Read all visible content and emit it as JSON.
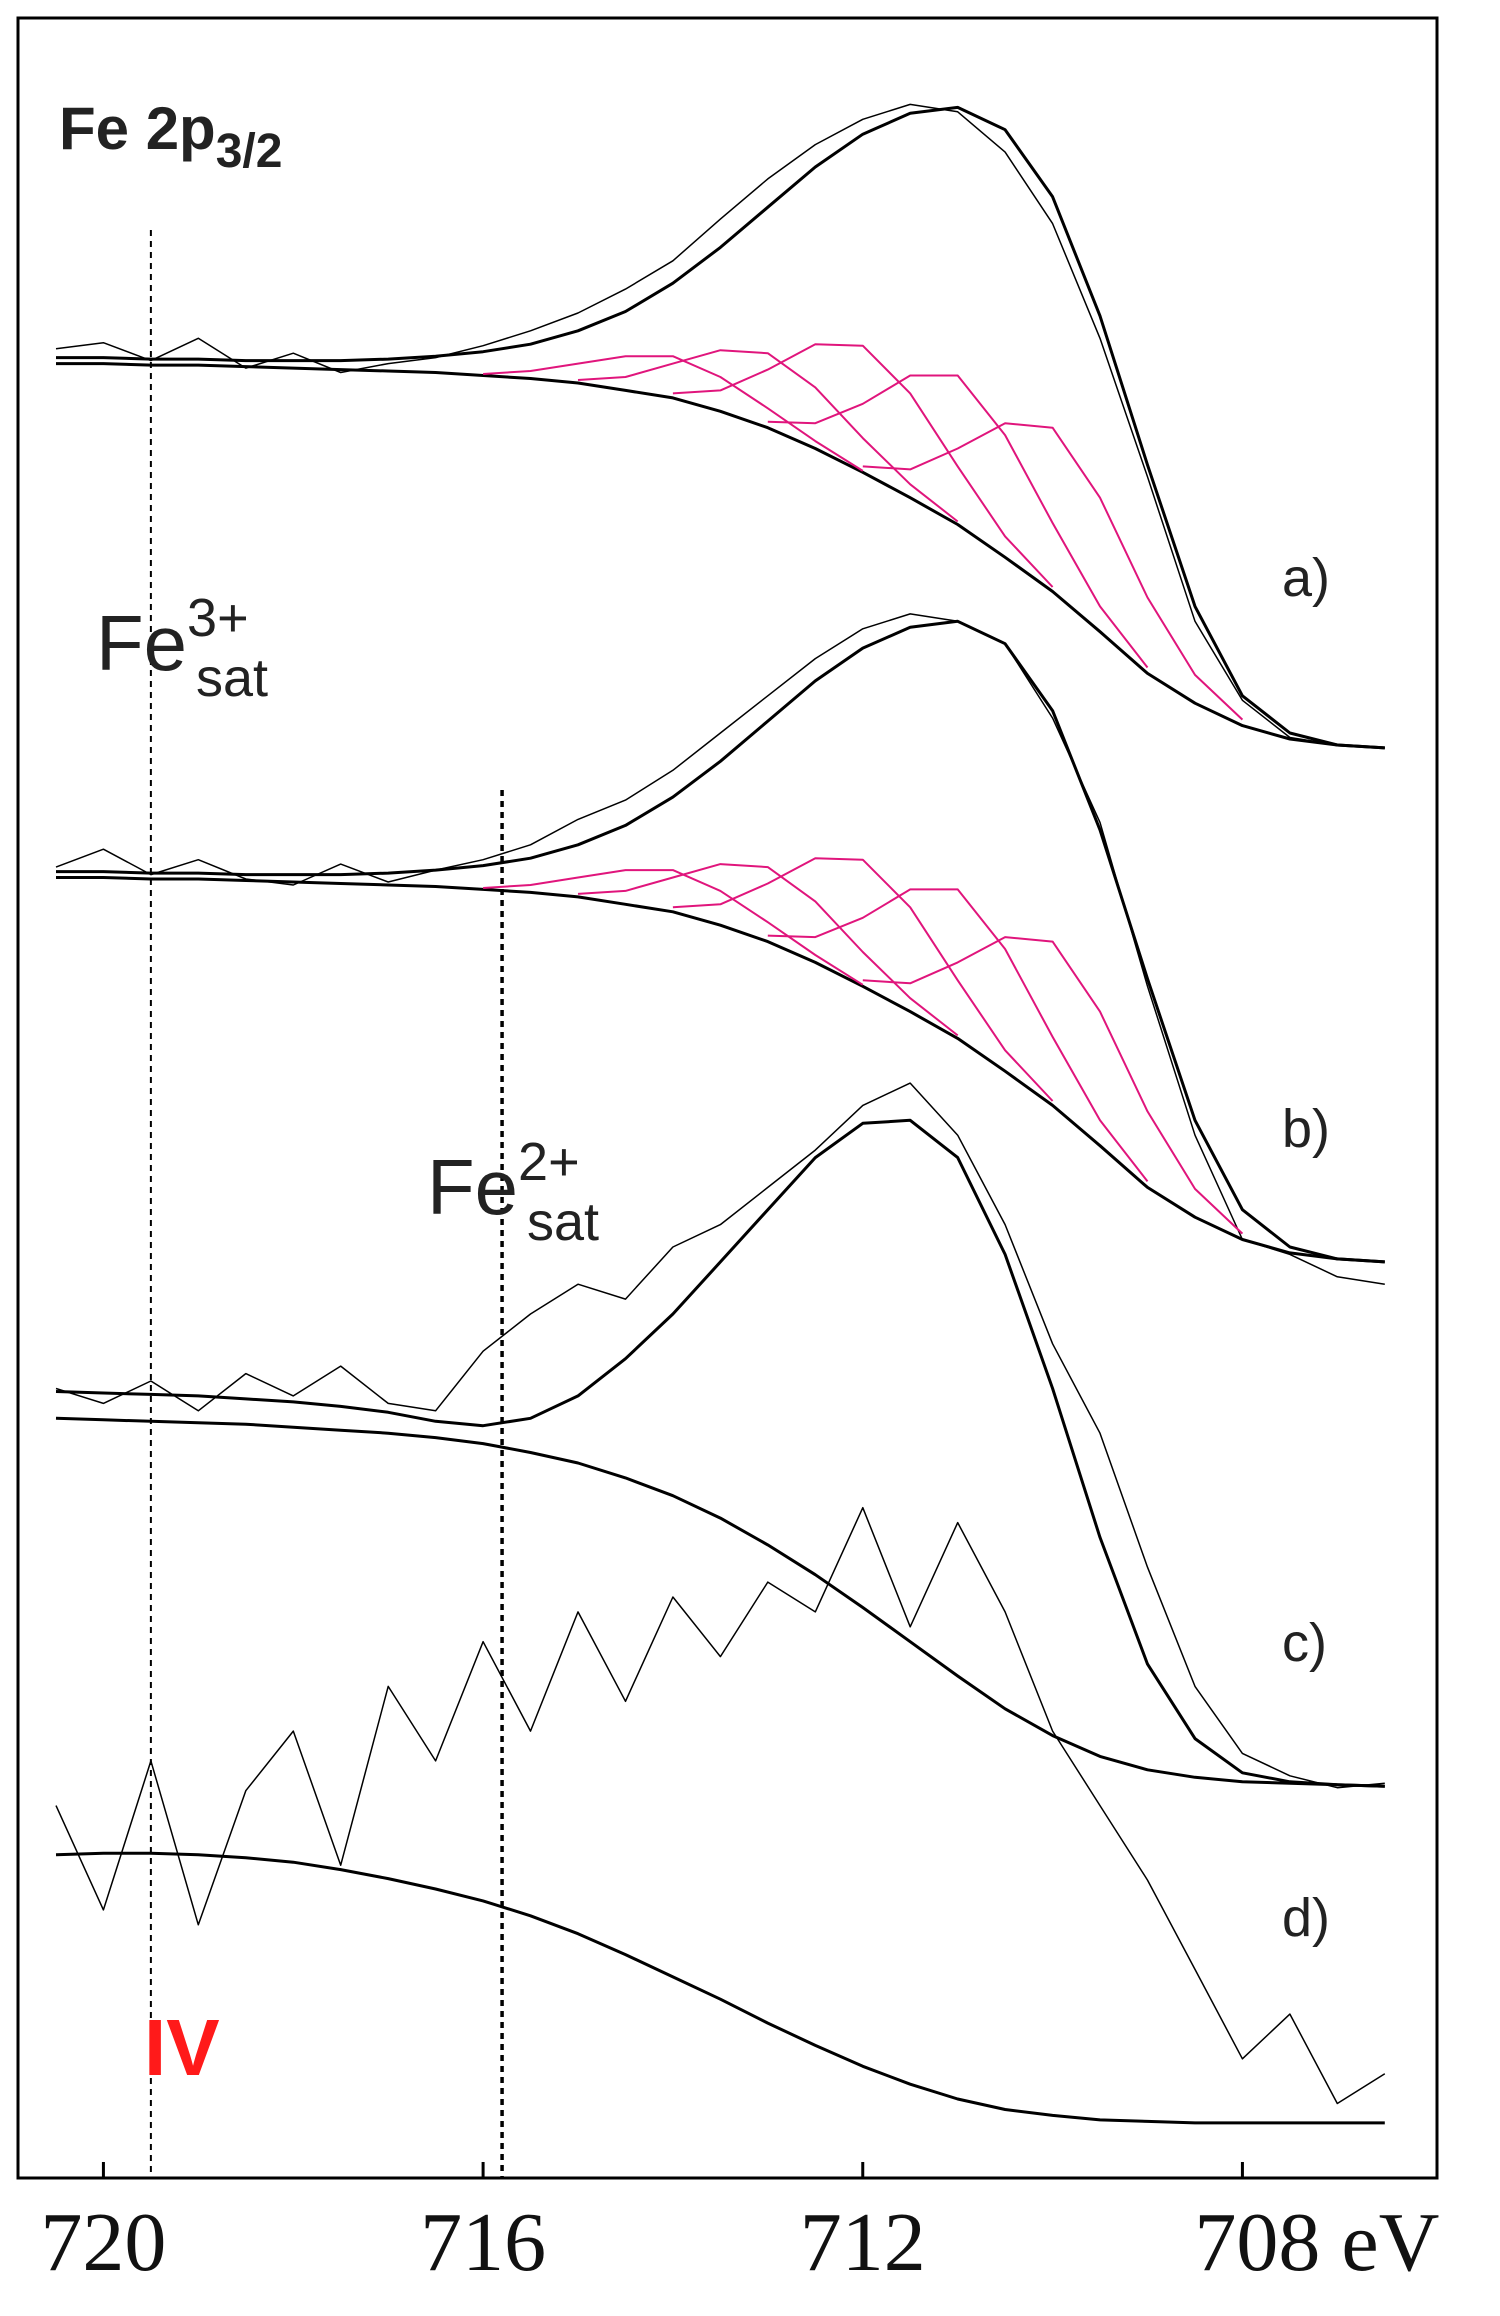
{
  "chart_data": {
    "type": "line",
    "title": {
      "main": "Fe 2p",
      "sub": "3/2"
    },
    "x": [
      720.5,
      720,
      719.5,
      719,
      718.5,
      718,
      717.5,
      717,
      716.5,
      716,
      715.5,
      715,
      714.5,
      714,
      713.5,
      713,
      712.5,
      712,
      711.5,
      711,
      710.5,
      710,
      709.5,
      709,
      708.5,
      708,
      707.5,
      707,
      706.5
    ],
    "xlim": [
      720.9,
      705.95
    ],
    "xticks": [
      720,
      716,
      712,
      {
        "value": 708,
        "label": "708 eV"
      }
    ],
    "ylim": [
      0,
      1450
    ],
    "grid": false,
    "vlines": [
      719.5,
      715.8
    ],
    "labels": {
      "a": "a)",
      "b": "b)",
      "c": "c)",
      "d": "d)",
      "fe3": {
        "main": "Fe",
        "sup": "3+",
        "sub": "sat"
      },
      "fe2": {
        "main": "Fe",
        "sup": "2+",
        "sub": "sat"
      },
      "iv": "IV"
    },
    "series": [
      {
        "color": "#000000",
        "width": 1.5,
        "values": [
          1228,
          1232,
          1220,
          1235,
          1215,
          1225,
          1212,
          1218,
          1222,
          1230,
          1240,
          1252,
          1268,
          1287,
          1315,
          1342,
          1365,
          1382,
          1392,
          1387,
          1360,
          1312,
          1235,
          1142,
          1045,
          992,
          967,
          962,
          960
        ]
      },
      {
        "color": "#000000",
        "width": 3,
        "values": [
          1222,
          1222,
          1221,
          1221,
          1220,
          1220,
          1220,
          1221,
          1223,
          1226,
          1231,
          1240,
          1253,
          1272,
          1296,
          1323,
          1350,
          1372,
          1386,
          1390,
          1375,
          1330,
          1250,
          1150,
          1055,
          995,
          970,
          962,
          960
        ]
      },
      {
        "color": "#000000",
        "width": 3,
        "values": [
          1218,
          1218,
          1217,
          1217,
          1216,
          1215,
          1214,
          1213,
          1212,
          1210,
          1208,
          1205,
          1200,
          1195,
          1186,
          1175,
          1161,
          1145,
          1128,
          1110,
          1088,
          1065,
          1038,
          1010,
          990,
          975,
          966,
          962,
          960
        ]
      },
      {
        "color": "#e0157c",
        "width": 2,
        "x": [
          716,
          715.5,
          715,
          714.5,
          714,
          713.5,
          713,
          712.5,
          712
        ],
        "values": [
          1211,
          1213,
          1218,
          1223,
          1223,
          1209,
          1188,
          1166,
          1146
        ]
      },
      {
        "color": "#e0157c",
        "width": 2,
        "x": [
          715,
          714.5,
          714,
          713.5,
          713,
          712.5,
          712,
          711.5,
          711
        ],
        "values": [
          1207,
          1209,
          1218,
          1227,
          1225,
          1202,
          1168,
          1137,
          1112
        ]
      },
      {
        "color": "#e0157c",
        "width": 2,
        "x": [
          714,
          713.5,
          713,
          712.5,
          712,
          711.5,
          711,
          710.5,
          710
        ],
        "values": [
          1198,
          1200,
          1214,
          1231,
          1230,
          1198,
          1149,
          1102,
          1068
        ]
      },
      {
        "color": "#e0157c",
        "width": 2,
        "x": [
          713,
          712.5,
          712,
          711.5,
          711,
          710.5,
          710,
          709.5,
          709
        ],
        "values": [
          1179,
          1178,
          1191,
          1210,
          1210,
          1170,
          1111,
          1055,
          1014
        ]
      },
      {
        "color": "#e0157c",
        "width": 2,
        "x": [
          712,
          711.5,
          711,
          710.5,
          710,
          709.5,
          709,
          708.5,
          708
        ],
        "values": [
          1149,
          1147,
          1161,
          1178,
          1175,
          1128,
          1061,
          1009,
          979
        ]
      },
      {
        "color": "#000000",
        "width": 1.5,
        "values": [
          880,
          892,
          875,
          885,
          872,
          868,
          882,
          870,
          878,
          885,
          895,
          912,
          925,
          945,
          970,
          995,
          1020,
          1040,
          1050,
          1045,
          1030,
          980,
          910,
          800,
          700,
          630,
          620,
          605,
          600
        ]
      },
      {
        "color": "#000000",
        "width": 3,
        "values": [
          877,
          877,
          876,
          876,
          875,
          875,
          875,
          876,
          878,
          881,
          886,
          895,
          908,
          927,
          951,
          978,
          1005,
          1027,
          1041,
          1045,
          1030,
          985,
          905,
          805,
          710,
          650,
          625,
          617,
          615
        ]
      },
      {
        "color": "#000000",
        "width": 3,
        "values": [
          873,
          873,
          872,
          872,
          871,
          870,
          869,
          868,
          867,
          865,
          863,
          860,
          855,
          850,
          841,
          830,
          816,
          800,
          783,
          765,
          743,
          720,
          693,
          665,
          645,
          630,
          621,
          617,
          615
        ]
      },
      {
        "color": "#e0157c",
        "width": 2,
        "x": [
          716,
          715.5,
          715,
          714.5,
          714,
          713.5,
          713,
          712.5,
          712
        ],
        "values": [
          866,
          868,
          873,
          878,
          878,
          864,
          843,
          821,
          801
        ]
      },
      {
        "color": "#e0157c",
        "width": 2,
        "x": [
          715,
          714.5,
          714,
          713.5,
          713,
          712.5,
          712,
          711.5,
          711
        ],
        "values": [
          862,
          864,
          873,
          882,
          880,
          857,
          823,
          792,
          767
        ]
      },
      {
        "color": "#e0157c",
        "width": 2,
        "x": [
          714,
          713.5,
          713,
          712.5,
          712,
          711.5,
          711,
          710.5,
          710
        ],
        "values": [
          853,
          855,
          869,
          886,
          885,
          853,
          804,
          757,
          723
        ]
      },
      {
        "color": "#e0157c",
        "width": 2,
        "x": [
          713,
          712.5,
          712,
          711.5,
          711,
          710.5,
          710,
          709.5,
          709
        ],
        "values": [
          834,
          833,
          846,
          865,
          865,
          825,
          766,
          710,
          669
        ]
      },
      {
        "color": "#e0157c",
        "width": 2,
        "x": [
          712,
          711.5,
          711,
          710.5,
          710,
          709.5,
          709,
          708.5,
          708
        ],
        "values": [
          804,
          802,
          816,
          833,
          830,
          783,
          716,
          664,
          634
        ]
      },
      {
        "color": "#000000",
        "width": 1.5,
        "values": [
          530,
          520,
          535,
          515,
          540,
          525,
          545,
          520,
          515,
          555,
          580,
          600,
          590,
          625,
          640,
          665,
          690,
          720,
          735,
          700,
          640,
          560,
          500,
          410,
          330,
          285,
          270,
          262,
          265
        ]
      },
      {
        "color": "#000000",
        "width": 3,
        "values": [
          528,
          527,
          526,
          525,
          523,
          521,
          518,
          514,
          508,
          505,
          510,
          525,
          550,
          580,
          615,
          650,
          685,
          708,
          710,
          685,
          620,
          530,
          430,
          345,
          295,
          272,
          266,
          264,
          263
        ]
      },
      {
        "color": "#000000",
        "width": 3,
        "values": [
          510,
          509,
          508,
          507,
          506,
          504,
          502,
          500,
          497,
          493,
          487,
          480,
          470,
          458,
          443,
          425,
          405,
          383,
          360,
          337,
          315,
          297,
          283,
          274,
          269,
          266,
          265,
          264,
          263
        ]
      },
      {
        "color": "#000000",
        "width": 1.5,
        "values": [
          250,
          180,
          280,
          170,
          260,
          300,
          210,
          330,
          280,
          360,
          300,
          380,
          320,
          390,
          350,
          400,
          380,
          450,
          370,
          440,
          380,
          300,
          250,
          200,
          140,
          80,
          110,
          50,
          70
        ]
      },
      {
        "color": "#000000",
        "width": 3,
        "values": [
          217,
          218,
          218,
          217,
          215,
          212,
          207,
          201,
          194,
          186,
          176,
          164,
          150,
          135,
          120,
          104,
          89,
          75,
          63,
          53,
          46,
          42,
          39,
          38,
          37,
          37,
          37,
          37,
          37
        ]
      }
    ]
  }
}
